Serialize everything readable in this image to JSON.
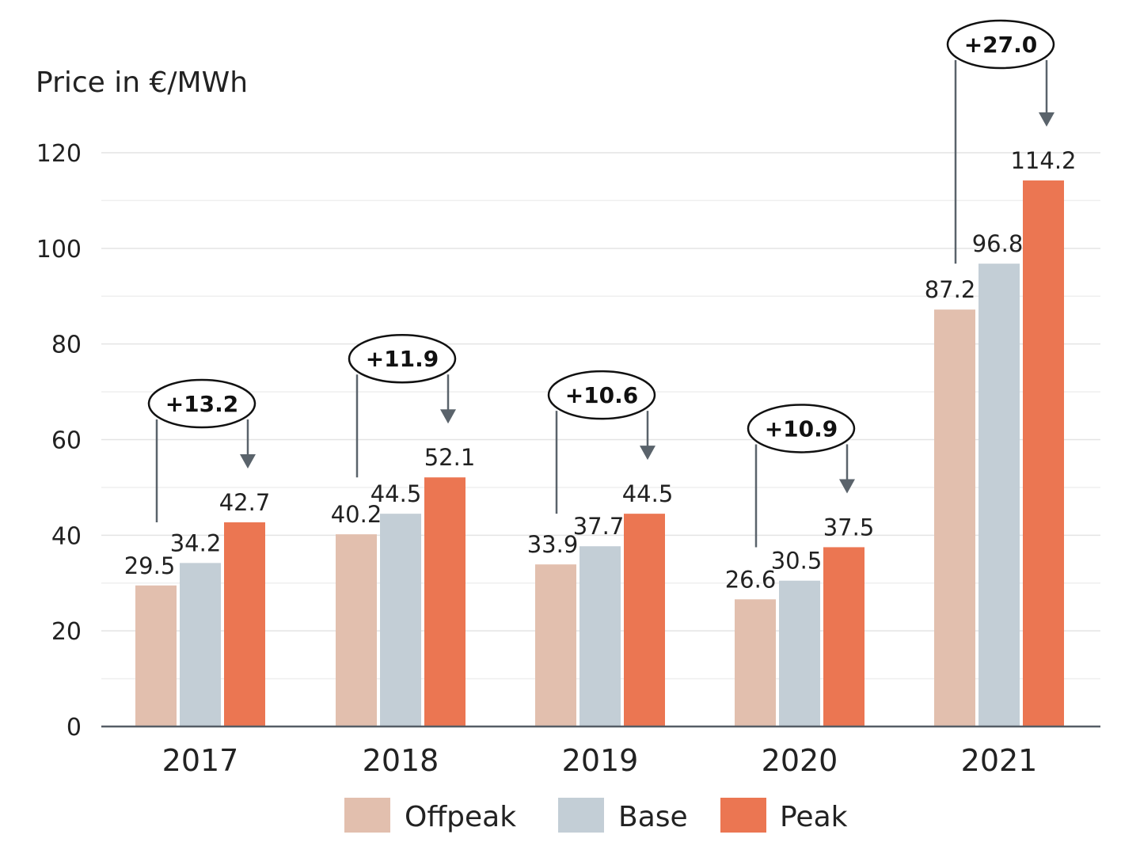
{
  "chart_data": {
    "type": "bar",
    "title": "",
    "ylabel": "Price in €/MWh",
    "xlabel": "",
    "ylim": [
      0,
      120
    ],
    "yticks": [
      0,
      20,
      40,
      60,
      80,
      100,
      120
    ],
    "grid": true,
    "categories": [
      "2017",
      "2018",
      "2019",
      "2020",
      "2021"
    ],
    "series": [
      {
        "name": "Offpeak",
        "color": "#e2bfae",
        "values": [
          29.5,
          40.2,
          33.9,
          26.6,
          87.2
        ]
      },
      {
        "name": "Base",
        "color": "#c3ced6",
        "values": [
          34.2,
          44.5,
          37.7,
          30.5,
          96.8
        ]
      },
      {
        "name": "Peak",
        "color": "#eb7652",
        "values": [
          42.7,
          52.1,
          44.5,
          37.5,
          114.2
        ]
      }
    ],
    "value_labels": {
      "Offpeak": [
        "29.5",
        "40.2",
        "33.9",
        "26.6",
        "87.2"
      ],
      "Base": [
        "34.2",
        "44.5",
        "37.7",
        "30.5",
        "96.8"
      ],
      "Peak": [
        "42.7",
        "52.1",
        "44.5",
        "37.5",
        "114.2"
      ]
    },
    "annotations": [
      "+13.2",
      "+11.9",
      "+10.6",
      "+10.9",
      "+27.0"
    ],
    "legend_position": "bottom-center"
  }
}
